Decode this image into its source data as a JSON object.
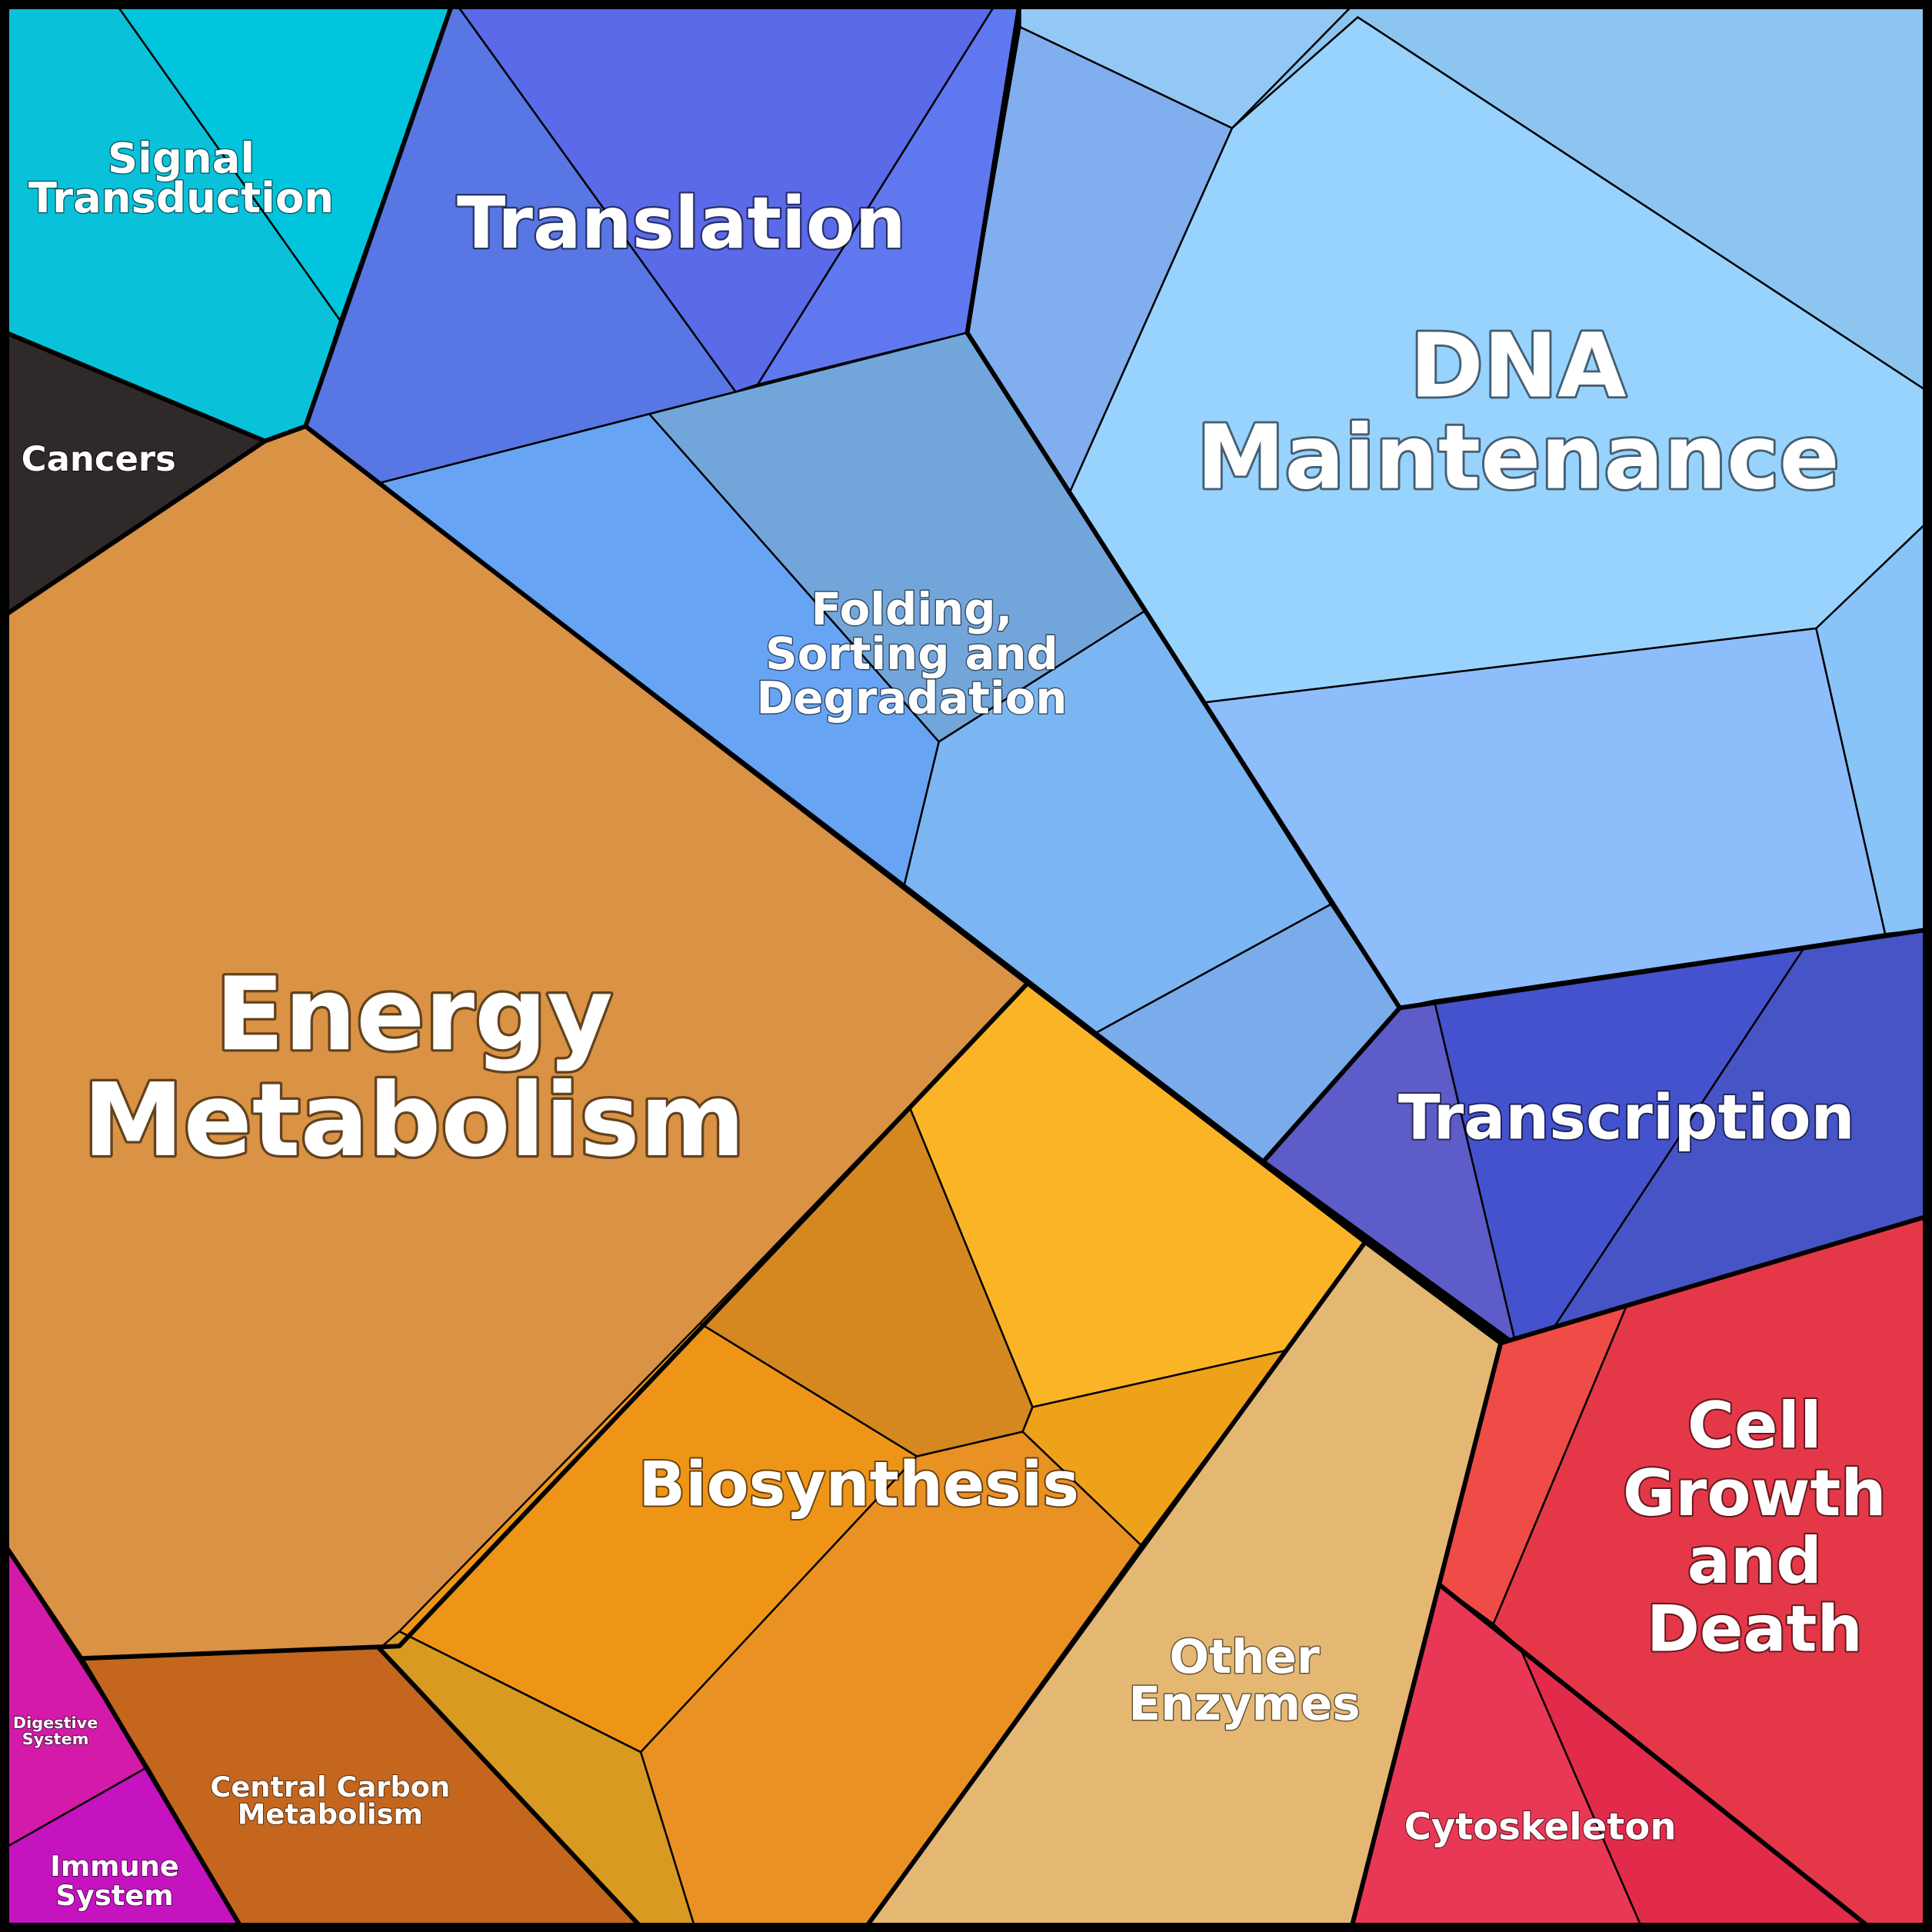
{
  "diagram": {
    "type": "voronoi-treemap",
    "categories": [
      {
        "id": "signal-transduction",
        "lines": [
          "Signal",
          "Transduction"
        ],
        "color": "#07c5dc"
      },
      {
        "id": "translation",
        "lines": [
          "Translation"
        ],
        "color": "#5a70e8"
      },
      {
        "id": "dna-maintenance",
        "lines": [
          "DNA",
          "Maintenance"
        ],
        "color": "#97d2fc"
      },
      {
        "id": "cancers",
        "lines": [
          "Cancers"
        ],
        "color": "#302a2a"
      },
      {
        "id": "folding-sorting-degradation",
        "lines": [
          "Folding,",
          "Sorting and",
          "Degradation"
        ],
        "color": "#74a6dc"
      },
      {
        "id": "energy-metabolism",
        "lines": [
          "Energy",
          "Metabolism"
        ],
        "color": "#d99244"
      },
      {
        "id": "transcription",
        "lines": [
          "Transcription"
        ],
        "color": "#4452cc"
      },
      {
        "id": "biosynthesis",
        "lines": [
          "Biosynthesis"
        ],
        "color": "#ee9616"
      },
      {
        "id": "cell-growth-and-death",
        "lines": [
          "Cell",
          "Growth",
          "and",
          "Death"
        ],
        "color": "#e43848"
      },
      {
        "id": "other-enzymes",
        "lines": [
          "Other",
          "Enzymes"
        ],
        "color": "#e4b872"
      },
      {
        "id": "digestive-system",
        "lines": [
          "Digestive",
          "System"
        ],
        "color": "#d41aa8"
      },
      {
        "id": "central-carbon-metabolism",
        "lines": [
          "Central Carbon",
          "Metabolism"
        ],
        "color": "#c4661e"
      },
      {
        "id": "immune-system",
        "lines": [
          "Immune",
          "System"
        ],
        "color": "#c512bf"
      },
      {
        "id": "cytoskeleton",
        "lines": [
          "Cytoskeleton"
        ],
        "color": "#e83a56"
      }
    ]
  }
}
